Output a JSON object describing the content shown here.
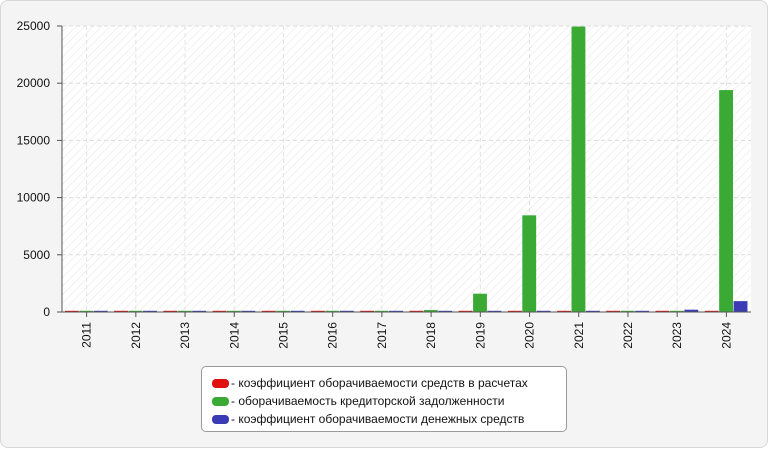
{
  "chart_data": {
    "type": "bar",
    "categories": [
      "2011",
      "2012",
      "2013",
      "2014",
      "2015",
      "2016",
      "2017",
      "2018",
      "2019",
      "2020",
      "2021",
      "2022",
      "2023",
      "2024"
    ],
    "series": [
      {
        "name": "коэффициент оборачиваемости средств в расчетах",
        "color": "#e01010",
        "values": [
          15,
          15,
          15,
          15,
          15,
          15,
          15,
          15,
          15,
          15,
          15,
          15,
          15,
          15
        ]
      },
      {
        "name": "оборачиваемость кредиторской задолженности",
        "color": "#3aaa35",
        "values": [
          40,
          40,
          40,
          40,
          40,
          40,
          40,
          170,
          1600,
          8450,
          24950,
          40,
          40,
          19400
        ]
      },
      {
        "name": "коэффициент оборачиваемости денежных средств",
        "color": "#3b3bb5",
        "values": [
          30,
          30,
          30,
          30,
          30,
          30,
          30,
          30,
          30,
          30,
          30,
          30,
          200,
          950
        ]
      }
    ],
    "yticks": [
      0,
      5000,
      10000,
      15000,
      20000,
      25000
    ],
    "ylim": [
      0,
      25000
    ],
    "xlabel": "",
    "ylabel": "",
    "title": "",
    "grid": true,
    "legend_position": "bottom-center"
  },
  "legend": {
    "items": [
      {
        "label": "- коэффициент оборачиваемости средств в расчетах",
        "color": "#e01010"
      },
      {
        "label": "- оборачиваемость кредиторской задолженности",
        "color": "#3aaa35"
      },
      {
        "label": "- коэффициент оборачиваемости денежных средств",
        "color": "#3b3bb5"
      }
    ]
  }
}
